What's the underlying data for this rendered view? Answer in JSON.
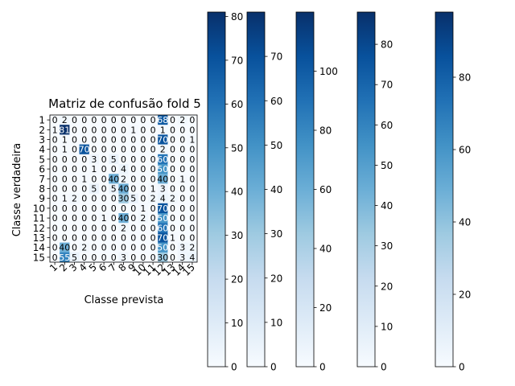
{
  "chart_data": {
    "type": "heatmap",
    "title": "Matriz de confusão fold 5",
    "xlabel": "Classe prevista",
    "ylabel": "Classe verdadeira",
    "colormap": "Blues",
    "colors": {
      "low": "#f7fbff",
      "high": "#08306b",
      "text_dark": "#000000",
      "text_light": "#ffffff"
    },
    "x_ticks": [
      "1",
      "2",
      "3",
      "4",
      "5",
      "6",
      "7",
      "8",
      "9",
      "10",
      "11",
      "12",
      "13",
      "14",
      "15"
    ],
    "y_ticks": [
      "1",
      "2",
      "3",
      "4",
      "5",
      "6",
      "7",
      "8",
      "9",
      "10",
      "11",
      "12",
      "13",
      "14",
      "15"
    ],
    "matrix_is_approximate": true,
    "matrix": [
      [
        0,
        2,
        0,
        0,
        0,
        0,
        0,
        0,
        0,
        0,
        0,
        68,
        0,
        2,
        0
      ],
      [
        1,
        81,
        0,
        0,
        0,
        0,
        0,
        0,
        1,
        0,
        0,
        1,
        0,
        0,
        0
      ],
      [
        0,
        1,
        0,
        0,
        0,
        0,
        0,
        0,
        0,
        0,
        0,
        70,
        0,
        0,
        1
      ],
      [
        0,
        1,
        0,
        70,
        0,
        0,
        0,
        0,
        0,
        0,
        0,
        2,
        0,
        0,
        0
      ],
      [
        0,
        0,
        0,
        0,
        3,
        0,
        5,
        0,
        0,
        0,
        0,
        60,
        0,
        0,
        0
      ],
      [
        0,
        0,
        0,
        0,
        1,
        0,
        0,
        4,
        0,
        0,
        0,
        50,
        0,
        0,
        0
      ],
      [
        0,
        0,
        0,
        1,
        0,
        0,
        40,
        2,
        0,
        0,
        0,
        40,
        0,
        1,
        0
      ],
      [
        0,
        0,
        0,
        0,
        5,
        0,
        5,
        40,
        0,
        0,
        1,
        3,
        0,
        0,
        0
      ],
      [
        0,
        1,
        2,
        0,
        0,
        0,
        0,
        30,
        5,
        0,
        2,
        4,
        2,
        0,
        0
      ],
      [
        0,
        0,
        0,
        0,
        0,
        0,
        0,
        0,
        0,
        1,
        0,
        70,
        0,
        0,
        0
      ],
      [
        0,
        0,
        0,
        0,
        0,
        1,
        0,
        40,
        0,
        2,
        0,
        50,
        0,
        0,
        0
      ],
      [
        0,
        0,
        0,
        0,
        0,
        0,
        0,
        2,
        0,
        0,
        0,
        60,
        0,
        0,
        0
      ],
      [
        0,
        0,
        0,
        0,
        0,
        0,
        0,
        0,
        0,
        0,
        0,
        70,
        1,
        0,
        0
      ],
      [
        0,
        40,
        0,
        2,
        0,
        0,
        0,
        0,
        0,
        0,
        0,
        50,
        0,
        3,
        2
      ],
      [
        0,
        55,
        5,
        0,
        0,
        0,
        0,
        3,
        0,
        0,
        0,
        30,
        0,
        3,
        4
      ]
    ],
    "colorbars": [
      {
        "vmin": 0,
        "vmax": 81,
        "ticks": [
          0,
          10,
          20,
          30,
          40,
          50,
          60,
          70,
          80
        ]
      },
      {
        "vmin": 0,
        "vmax": 80,
        "ticks": [
          0,
          10,
          20,
          30,
          40,
          50,
          60,
          70
        ]
      },
      {
        "vmin": 0,
        "vmax": 120,
        "ticks": [
          0,
          20,
          40,
          60,
          80,
          100
        ]
      },
      {
        "vmin": 0,
        "vmax": 88,
        "ticks": [
          0,
          10,
          20,
          30,
          40,
          50,
          60,
          70,
          80
        ]
      },
      {
        "vmin": 0,
        "vmax": 98,
        "ticks": [
          0,
          20,
          40,
          60,
          80
        ]
      }
    ]
  }
}
